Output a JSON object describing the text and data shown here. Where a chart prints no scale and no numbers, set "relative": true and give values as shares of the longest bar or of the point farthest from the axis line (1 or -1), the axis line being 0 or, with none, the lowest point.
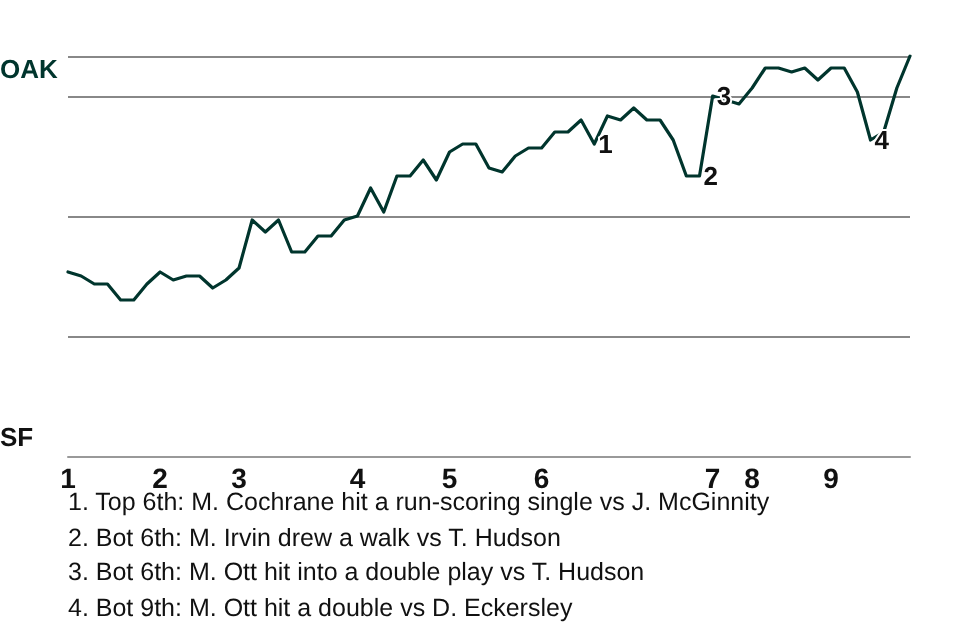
{
  "chart_data": {
    "type": "line",
    "categories": [
      "1",
      null,
      null,
      null,
      null,
      null,
      null,
      "2",
      null,
      null,
      null,
      null,
      null,
      "3",
      null,
      null,
      null,
      null,
      null,
      null,
      null,
      null,
      "4",
      null,
      null,
      null,
      null,
      null,
      null,
      "5",
      null,
      null,
      null,
      null,
      null,
      null,
      "6",
      null,
      null,
      null,
      null,
      null,
      null,
      null,
      null,
      null,
      null,
      null,
      null,
      "7",
      null,
      null,
      "8",
      null,
      null,
      null,
      null,
      null,
      "9",
      null,
      null,
      null,
      null,
      null,
      null
    ],
    "series": [
      {
        "color": "#00352d",
        "values": [
          0.46,
          0.45,
          0.43,
          0.43,
          0.39,
          0.39,
          0.43,
          0.46,
          0.44,
          0.45,
          0.45,
          0.42,
          0.44,
          0.47,
          0.59,
          0.56,
          0.59,
          0.51,
          0.51,
          0.55,
          0.55,
          0.59,
          0.6,
          0.67,
          0.61,
          0.7,
          0.7,
          0.74,
          0.69,
          0.76,
          0.78,
          0.78,
          0.72,
          0.71,
          0.75,
          0.77,
          0.77,
          0.81,
          0.81,
          0.84,
          0.78,
          0.85,
          0.84,
          0.87,
          0.84,
          0.84,
          0.79,
          0.7,
          0.7,
          0.9,
          0.89,
          0.88,
          0.92,
          0.97,
          0.97,
          0.96,
          0.97,
          0.94,
          0.97,
          0.97,
          0.91,
          0.79,
          0.81,
          0.92,
          1
        ],
        "name": null
      }
    ],
    "relative": true,
    "annotations": [
      "OAK",
      "SF",
      {
        "text": "1",
        "y": 0.78
      },
      {
        "text": "2",
        "y": 0.7
      },
      {
        "text": "3",
        "y": 0.9
      },
      {
        "text": "4",
        "y": 0.79
      },
      "1. Top 6th: M. Cochrane hit a run-scoring single vs J. McGinnity",
      "2. Bot 6th: M. Irvin drew a walk vs T. Hudson",
      "3. Bot 6th: M. Ott hit into a double play vs T. Hudson",
      "4. Bot 9th: M. Ott hit a double vs D. Eckersley"
    ],
    "grid": "y",
    "marker": "none",
    "line_style": "solid"
  }
}
